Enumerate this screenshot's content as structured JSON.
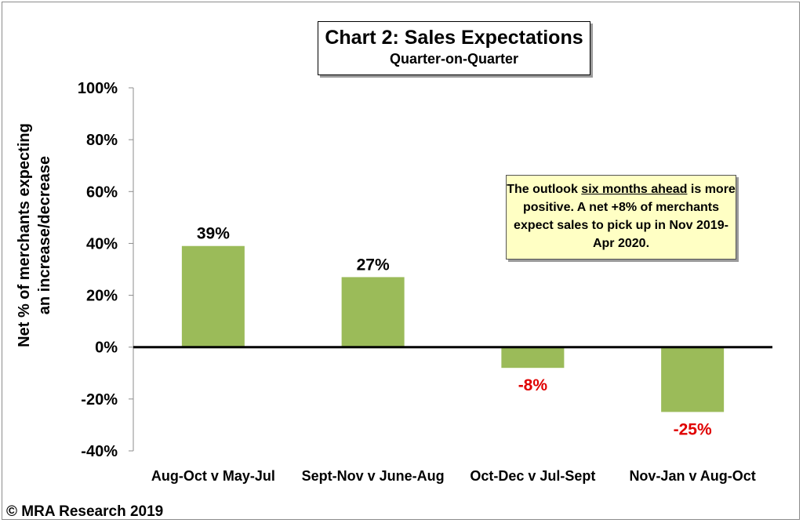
{
  "chart_data": {
    "type": "bar",
    "title": "Chart 2: Sales Expectations",
    "subtitle": "Quarter-on-Quarter",
    "ylabel_lines": [
      "Net % of merchants expecting",
      "an increase/decrease"
    ],
    "categories": [
      "Aug-Oct v May-Jul",
      "Sept-Nov v June-Aug",
      "Oct-Dec v Jul-Sept",
      "Nov-Jan v Aug-Oct"
    ],
    "values": [
      39,
      27,
      -8,
      -25
    ],
    "data_labels": [
      "39%",
      "27%",
      "-8%",
      "-25%"
    ],
    "ylim": [
      -40,
      100
    ],
    "yticks": [
      100,
      80,
      60,
      40,
      20,
      0,
      -20,
      -40
    ],
    "ytick_labels": [
      "100%",
      "80%",
      "60%",
      "40%",
      "20%",
      "0%",
      "-20%",
      "-40%"
    ],
    "grid": false,
    "bar_color": "#9bbb59",
    "positive_label_color": "#000000",
    "negative_label_color": "#e00000",
    "annotation": {
      "before": "The outlook ",
      "underlined": "six months ahead",
      "after": " is more positive. A net +8% of merchants expect sales to pick up in Nov 2019-Apr 2020."
    }
  },
  "footer": {
    "copyright": "© MRA Research 2019"
  }
}
